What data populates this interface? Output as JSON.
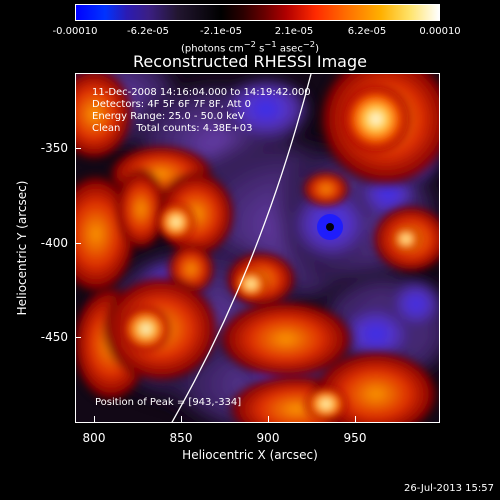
{
  "colorbar": {
    "ticks": [
      "-0.00010",
      "-6.2e-05",
      "-2.1e-05",
      "2.1e-05",
      "6.2e-05",
      "0.00010"
    ],
    "units_html": "(photons cm<sup>−2</sup> s<sup>−1</sup> asec<sup>−2</sup>)",
    "min": -0.0001,
    "max": 0.0001,
    "scale": "blue-purple-red-yellow-white"
  },
  "image": {
    "title": "Reconstructed RHESSI Image",
    "info_lines": [
      "11-Dec-2008 14:16:04.000 to 14:19:42.000",
      "Detectors: 4F 5F 6F 7F 8F, Att 0",
      "Energy Range: 25.0 - 50.0 keV",
      "Clean     Total counts: 4.38E+03"
    ],
    "peak_text": "Position of Peak = [943,-334]",
    "xlabel": "Heliocentric X (arcsec)",
    "ylabel": "Heliocentric Y (arcsec)",
    "xticks": [
      "800",
      "850",
      "900",
      "950"
    ],
    "yticks": [
      "-350",
      "-400",
      "-450"
    ]
  },
  "footer": {
    "timestamp": "26-Jul-2013 15:57"
  },
  "colors": {
    "background": "#000000",
    "foreground": "#ffffff"
  }
}
